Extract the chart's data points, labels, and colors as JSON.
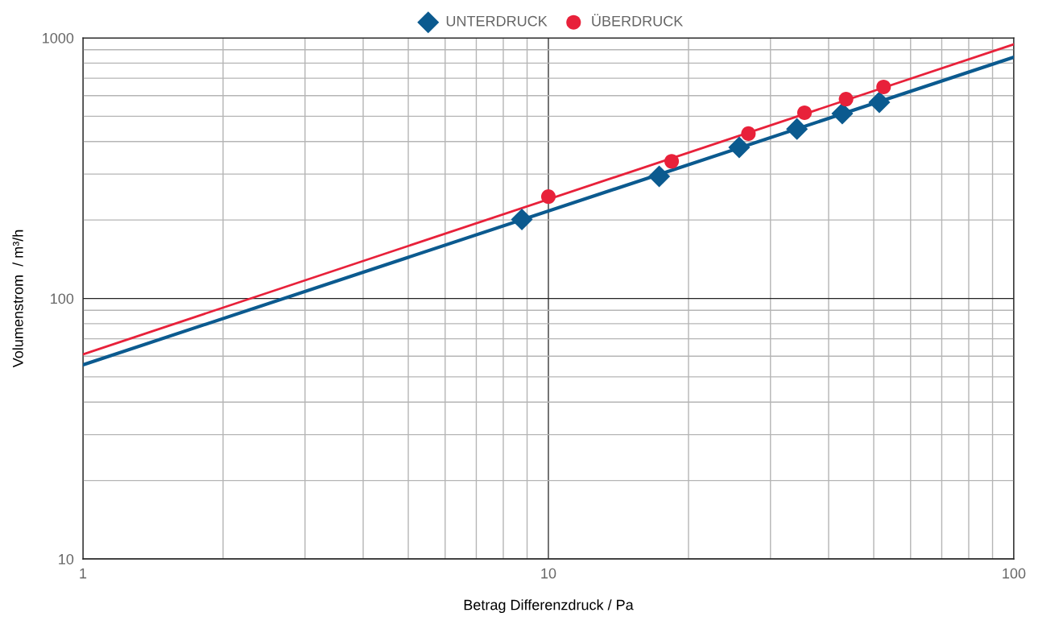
{
  "chart_data": {
    "type": "scatter",
    "xlabel": "Betrag Differenzdruck / Pa",
    "ylabel": "Volumenstrom  / m³/h",
    "log": "xy",
    "xlim": [
      1,
      100
    ],
    "ylim": [
      10,
      1000
    ],
    "xticks": [
      1,
      10,
      100
    ],
    "yticks": [
      10,
      100,
      1000
    ],
    "grid": true,
    "legend": "top",
    "series": [
      {
        "type": "line",
        "color": "#0b5a8f",
        "x": [
          1,
          100
        ],
        "values": [
          55.6,
          843
        ],
        "marker": "none"
      },
      {
        "type": "line",
        "color": "#e8213a",
        "x": [
          1,
          100
        ],
        "values": [
          61,
          945
        ],
        "marker": "none"
      },
      {
        "name": "UNTERDRUCK",
        "marker": "diamond",
        "color": "#0b5a8f",
        "x": [
          8.77,
          17.3,
          25.7,
          34.2,
          42.8,
          51.4
        ],
        "values": [
          201,
          294,
          380,
          447,
          512,
          566
        ]
      },
      {
        "name": "ÜBERDRUCK",
        "marker": "circle",
        "color": "#e8213a",
        "x": [
          10,
          18.4,
          26.9,
          35.5,
          43.6,
          52.5
        ],
        "values": [
          246,
          336,
          429,
          516,
          582,
          648
        ]
      }
    ]
  }
}
